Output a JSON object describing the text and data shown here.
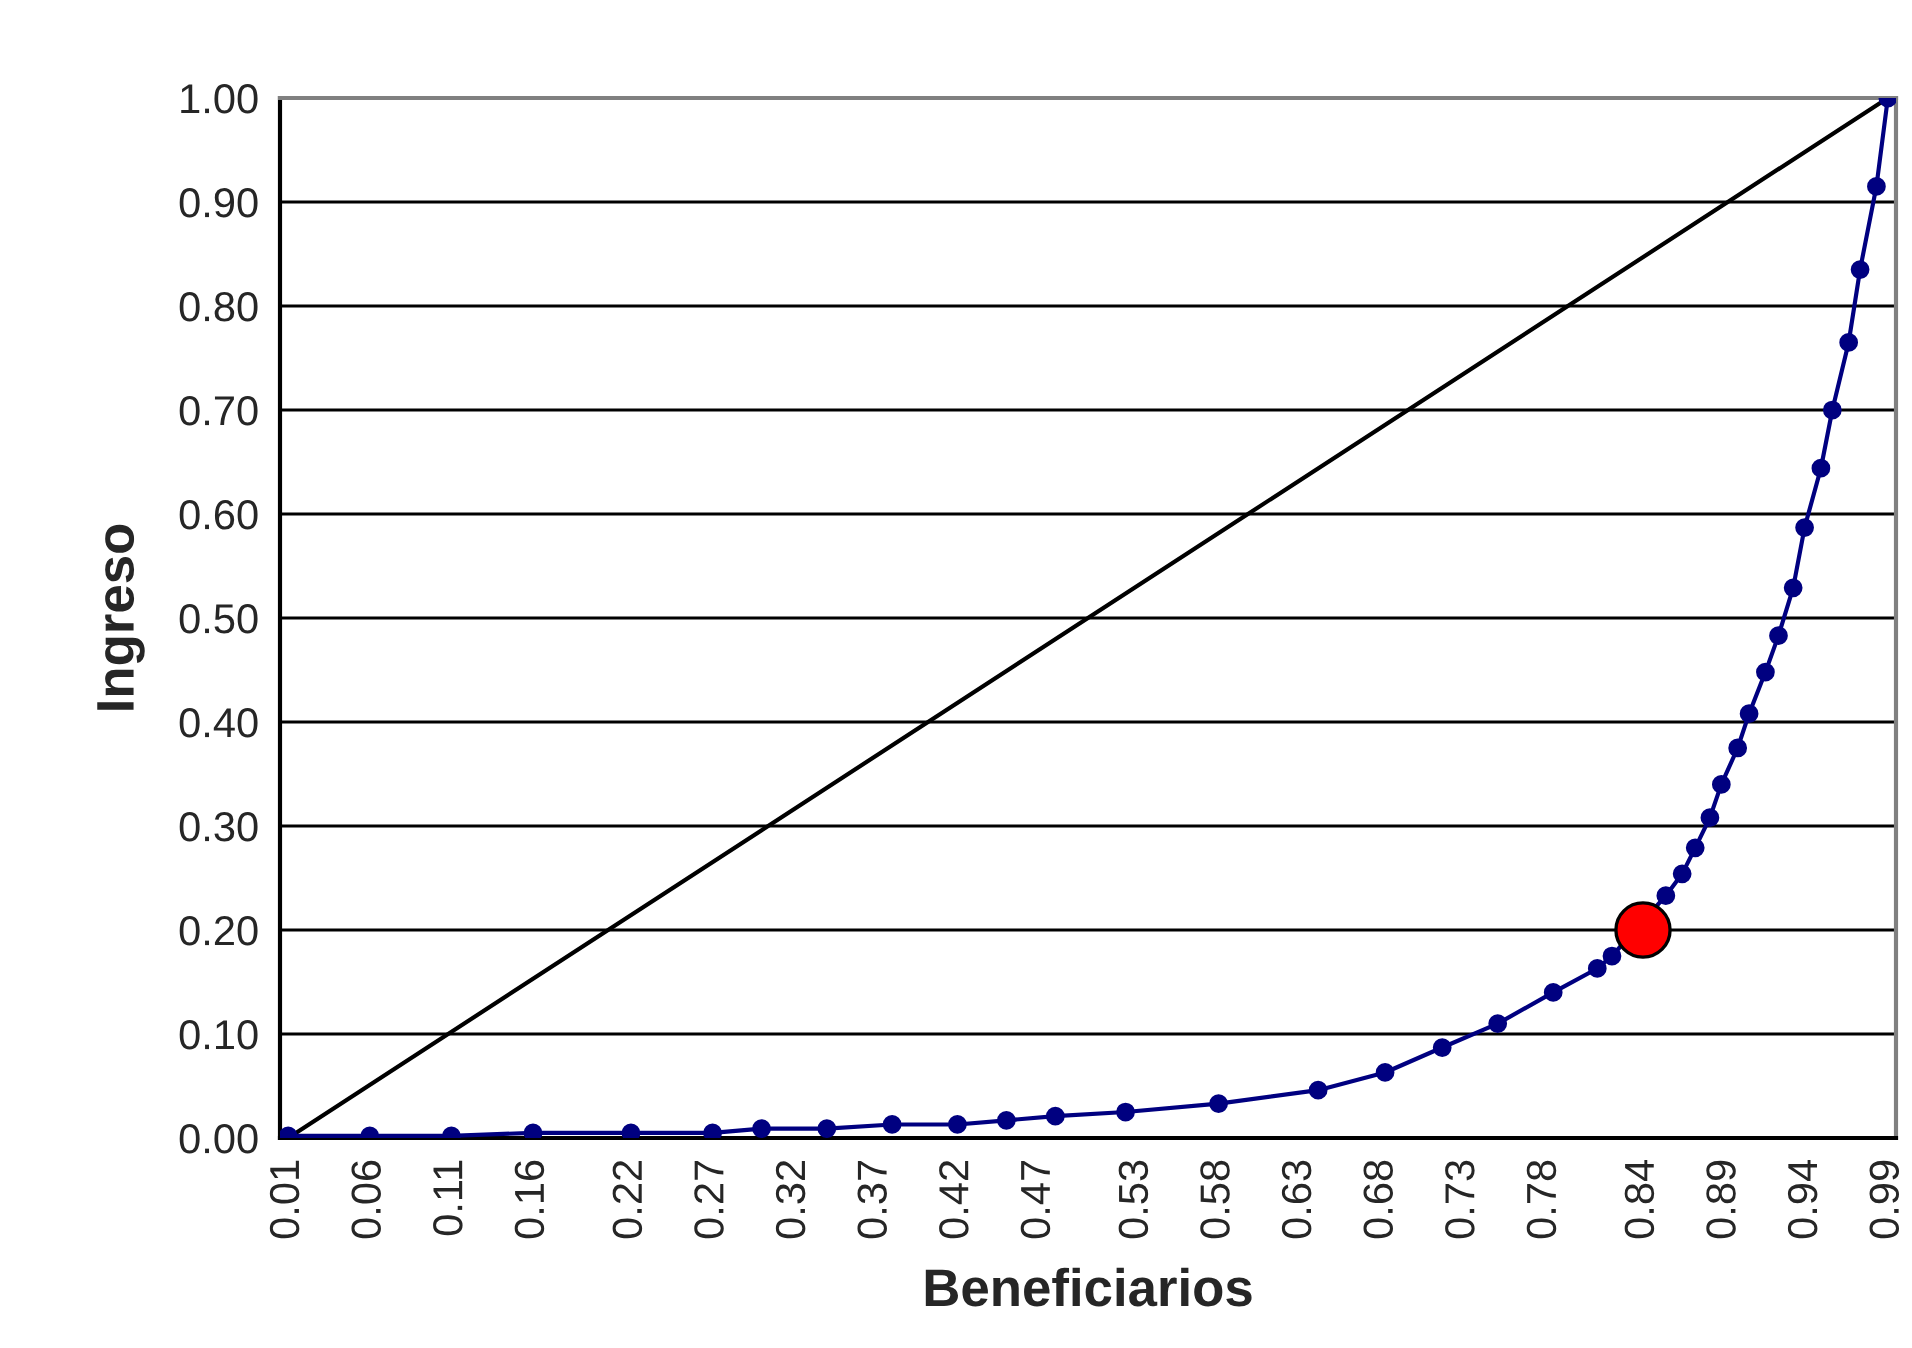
{
  "chart_data": {
    "type": "line",
    "xlabel": "Beneficiarios",
    "ylabel": "Ingreso",
    "xlim": [
      0.005,
      0.995
    ],
    "ylim": [
      0,
      1
    ],
    "xticks": [
      {
        "value": 0.01,
        "label": "0.01"
      },
      {
        "value": 0.06,
        "label": "0.06"
      },
      {
        "value": 0.11,
        "label": "0.11"
      },
      {
        "value": 0.16,
        "label": "0.16"
      },
      {
        "value": 0.22,
        "label": "0.22"
      },
      {
        "value": 0.27,
        "label": "0.27"
      },
      {
        "value": 0.32,
        "label": "0.32"
      },
      {
        "value": 0.37,
        "label": "0.37"
      },
      {
        "value": 0.42,
        "label": "0.42"
      },
      {
        "value": 0.47,
        "label": "0.47"
      },
      {
        "value": 0.53,
        "label": "0.53"
      },
      {
        "value": 0.58,
        "label": "0.58"
      },
      {
        "value": 0.63,
        "label": "0.63"
      },
      {
        "value": 0.68,
        "label": "0.68"
      },
      {
        "value": 0.73,
        "label": "0.73"
      },
      {
        "value": 0.78,
        "label": "0.78"
      },
      {
        "value": 0.84,
        "label": "0.84"
      },
      {
        "value": 0.89,
        "label": "0.89"
      },
      {
        "value": 0.94,
        "label": "0.94"
      },
      {
        "value": 0.99,
        "label": "0.99"
      }
    ],
    "yticks": [
      {
        "value": 0,
        "label": "0.00"
      },
      {
        "value": 0.1,
        "label": "0.10"
      },
      {
        "value": 0.2,
        "label": "0.20"
      },
      {
        "value": 0.3,
        "label": "0.30"
      },
      {
        "value": 0.4,
        "label": "0.40"
      },
      {
        "value": 0.5,
        "label": "0.50"
      },
      {
        "value": 0.6,
        "label": "0.60"
      },
      {
        "value": 0.7,
        "label": "0.70"
      },
      {
        "value": 0.8,
        "label": "0.80"
      },
      {
        "value": 0.9,
        "label": "0.90"
      },
      {
        "value": 1,
        "label": "1.00"
      }
    ],
    "grid": "y",
    "legend": false,
    "series": [
      {
        "color": "#000000",
        "marker": "none",
        "x": [
          0.01,
          0.99
        ],
        "values": [
          0,
          1
        ]
      },
      {
        "color": "#000080",
        "marker": "circle",
        "x": [
          0.01,
          0.06,
          0.11,
          0.16,
          0.22,
          0.27,
          0.3,
          0.34,
          0.38,
          0.42,
          0.45,
          0.48,
          0.523,
          0.58,
          0.641,
          0.682,
          0.717,
          0.751,
          0.785,
          0.812,
          0.821,
          0.854,
          0.864,
          0.872,
          0.881,
          0.888,
          0.898,
          0.905,
          0.915,
          0.923,
          0.932,
          0.939,
          0.949,
          0.956,
          0.966,
          0.973,
          0.983,
          0.99
        ],
        "values": [
          0.002,
          0.002,
          0.002,
          0.005,
          0.005,
          0.005,
          0.009,
          0.009,
          0.013,
          0.013,
          0.017,
          0.021,
          0.025,
          0.033,
          0.046,
          0.063,
          0.087,
          0.11,
          0.14,
          0.163,
          0.175,
          0.233,
          0.254,
          0.279,
          0.308,
          0.34,
          0.375,
          0.408,
          0.448,
          0.483,
          0.529,
          0.587,
          0.644,
          0.7,
          0.765,
          0.835,
          0.915,
          1
        ]
      },
      {
        "type": "scatter",
        "color": "#ff0000",
        "marker": "circle",
        "x": [
          0.84
        ],
        "values": [
          0.2
        ]
      }
    ]
  }
}
